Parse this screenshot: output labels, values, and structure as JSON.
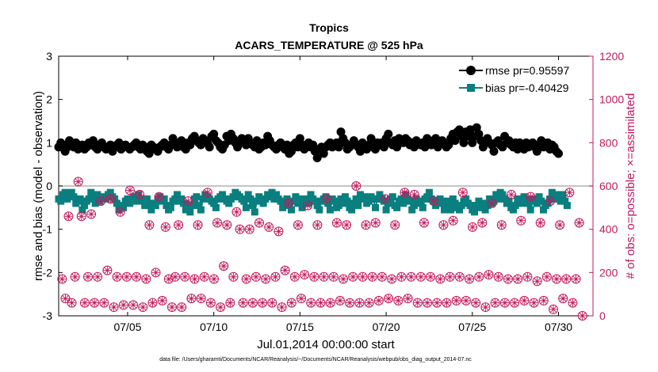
{
  "chart_data": {
    "type": "scatter",
    "title": "Tropics",
    "subtitle": "ACARS_TEMPERATURE @ 525 hPa",
    "xlabel": "Jul.01,2014 00:00:00 start",
    "ylabel": "rmse and bias (model - observation)",
    "y2label": "# of obs: o=possible; ×=assimilated",
    "xlim": [
      1,
      32
    ],
    "ylim": [
      -3,
      3
    ],
    "y2lim": [
      0,
      1200
    ],
    "xticks": [
      5,
      10,
      15,
      20,
      25,
      30
    ],
    "xtick_labels": [
      "07/05",
      "07/10",
      "07/15",
      "07/20",
      "07/25",
      "07/30"
    ],
    "yticks": [
      -3,
      -2,
      -1,
      0,
      1,
      2,
      3
    ],
    "ytick_labels": [
      "-3",
      "-2",
      "-1",
      "0",
      "1",
      "2",
      "3"
    ],
    "y2ticks": [
      0,
      200,
      400,
      600,
      800,
      1000,
      1200
    ],
    "y2tick_labels": [
      "0",
      "200",
      "400",
      "600",
      "800",
      "1000",
      "1200"
    ],
    "zero_line": 0,
    "legend_position": "top-right",
    "series": [
      {
        "name": "rmse pr=0.95597",
        "color": "#000000",
        "marker": "circle",
        "axis": "left",
        "values": [
          0.9,
          1.0,
          0.95,
          0.8,
          0.9,
          1.05,
          0.95,
          0.9,
          1.0,
          0.85,
          0.9,
          0.95,
          0.85,
          0.9,
          1.0,
          0.95,
          1.05,
          0.9,
          0.85,
          0.95,
          1.0,
          0.9,
          0.85,
          0.9,
          0.95,
          0.8,
          0.9,
          0.95,
          1.0,
          0.85,
          0.9,
          0.95,
          0.9,
          0.85,
          0.9,
          0.95,
          1.0,
          0.9,
          0.85,
          0.95,
          0.9,
          0.8,
          0.75,
          0.95,
          0.9,
          0.85,
          0.8,
          0.9,
          0.95,
          1.0,
          0.9,
          0.85,
          0.95,
          1.1,
          1.0,
          0.9,
          0.95,
          1.05,
          0.9,
          0.85,
          1.0,
          0.95,
          1.1,
          1.15,
          1.05,
          1.0,
          0.95,
          1.1,
          1.05,
          1.0,
          0.9,
          1.15,
          1.2,
          1.05,
          1.0,
          0.9,
          0.85,
          0.95,
          1.15,
          1.05,
          1.2,
          1.1,
          1.0,
          0.9,
          1.05,
          1.1,
          1.0,
          0.95,
          1.1,
          1.0,
          0.95,
          0.9,
          1.05,
          0.85,
          0.9,
          1.0,
          0.95,
          1.15,
          1.05,
          0.95,
          0.9,
          0.85,
          0.95,
          1.0,
          0.9,
          0.85,
          0.95,
          0.75,
          0.8,
          0.95,
          1.0,
          0.9,
          1.1,
          0.95,
          0.85,
          0.9,
          1.0,
          0.9,
          0.95,
          0.8,
          0.65,
          0.85,
          0.9,
          0.75,
          0.9,
          0.95,
          1.0,
          0.9,
          0.95,
          1.0,
          0.9,
          1.25,
          1.1,
          1.0,
          0.85,
          0.9,
          0.95,
          1.05,
          0.95,
          0.9,
          0.8,
          1.0,
          0.9,
          0.85,
          0.95,
          1.1,
          0.9,
          0.85,
          1.0,
          0.95,
          1.0,
          0.9,
          1.1,
          1.2,
          1.0,
          0.95,
          1.05,
          0.9,
          1.1,
          1.05,
          1.0,
          1.1,
          1.05,
          0.95,
          1.0,
          0.9,
          1.05,
          1.0,
          0.95,
          1.0,
          0.9,
          1.1,
          1.05,
          0.95,
          1.0,
          1.1,
          0.9,
          1.0,
          1.05,
          1.0,
          0.9,
          0.95,
          1.1,
          1.2,
          1.05,
          1.25,
          1.3,
          1.15,
          1.0,
          1.25,
          1.15,
          1.3,
          1.0,
          1.15,
          1.35,
          1.2,
          1.05,
          0.9,
          1.0,
          1.1,
          1.0,
          0.95,
          0.8,
          1.0,
          1.05,
          0.95,
          0.9,
          1.15,
          1.0,
          1.05,
          0.95,
          0.9,
          1.0,
          0.85,
          1.0,
          0.95,
          0.85,
          1.0,
          0.9,
          0.95,
          1.0,
          0.9,
          0.8,
          0.95,
          1.05,
          0.9,
          0.95,
          1.0,
          0.85,
          0.95,
          0.9,
          0.8,
          0.75
        ],
        "x_start": 1.0,
        "x_step": 0.125
      },
      {
        "name": "bias pr=-0.40429",
        "color": "#0a7f7f",
        "marker": "square",
        "axis": "left",
        "values": [
          -0.3,
          -0.35,
          -0.2,
          -0.15,
          -0.3,
          -0.2,
          -0.15,
          -0.25,
          -0.4,
          -0.35,
          -0.3,
          -0.55,
          -0.45,
          -0.35,
          -0.3,
          -0.15,
          -0.25,
          -0.4,
          -0.2,
          -0.35,
          -0.3,
          -0.25,
          -0.3,
          -0.2,
          -0.15,
          -0.25,
          -0.3,
          -0.4,
          -0.55,
          -0.45,
          -0.5,
          -0.35,
          -0.3,
          -0.4,
          -0.3,
          -0.25,
          -0.35,
          -0.2,
          -0.3,
          -0.35,
          -0.45,
          -0.3,
          -0.4,
          -0.55,
          -0.4,
          -0.45,
          -0.3,
          -0.25,
          -0.35,
          -0.3,
          -0.45,
          -0.55,
          -0.5,
          -0.35,
          -0.3,
          -0.2,
          -0.35,
          -0.3,
          -0.4,
          -0.55,
          -0.45,
          -0.6,
          -0.45,
          -0.3,
          -0.25,
          -0.45,
          -0.55,
          -0.3,
          -0.2,
          -0.25,
          -0.3,
          -0.35,
          -0.4,
          -0.5,
          -0.3,
          -0.25,
          -0.2,
          -0.3,
          -0.35,
          -0.4,
          -0.3,
          -0.25,
          -0.15,
          -0.2,
          -0.25,
          -0.3,
          -0.35,
          -0.5,
          -0.2,
          -0.3,
          -0.45,
          -0.6,
          -0.35,
          -0.25,
          -0.3,
          -0.4,
          -0.3,
          -0.2,
          -0.25,
          -0.15,
          -0.3,
          -0.2,
          -0.3,
          -0.35,
          -0.5,
          -0.45,
          -0.3,
          -0.4,
          -0.55,
          -0.35,
          -0.25,
          -0.4,
          -0.3,
          -0.5,
          -0.35,
          -0.3,
          -0.4,
          -0.2,
          -0.3,
          -0.35,
          -0.45,
          -0.55,
          -0.35,
          -0.3,
          -0.25,
          -0.4,
          -0.55,
          -0.3,
          -0.35,
          -0.5,
          -0.45,
          -0.3,
          -0.4,
          -0.25,
          -0.35,
          -0.5,
          -0.55,
          -0.4,
          -0.3,
          -0.45,
          -0.2,
          -0.3,
          -0.25,
          -0.4,
          -0.35,
          -0.25,
          -0.3,
          -0.5,
          -0.3,
          -0.2,
          -0.3,
          -0.35,
          -0.55,
          -0.4,
          -0.3,
          -0.25,
          -0.45,
          -0.5,
          -0.35,
          -0.3,
          -0.4,
          -0.2,
          -0.3,
          -0.35,
          -0.55,
          -0.45,
          -0.3,
          -0.4,
          -0.35,
          -0.5,
          -0.3,
          -0.25,
          -0.15,
          -0.3,
          -0.35,
          -0.45,
          -0.35,
          -0.3,
          -0.4,
          -0.55,
          -0.35,
          -0.45,
          -0.55,
          -0.3,
          -0.4,
          -0.5,
          -0.55,
          -0.45,
          -0.35,
          -0.3,
          -0.4,
          -0.45,
          -0.55,
          -0.6,
          -0.45,
          -0.35,
          -0.5,
          -0.4,
          -0.55,
          -0.45,
          -0.3,
          -0.4,
          -0.35,
          -0.2,
          -0.3,
          -0.15,
          -0.2,
          -0.3,
          -0.4,
          -0.35,
          -0.5,
          -0.55,
          -0.45,
          -0.3,
          -0.35,
          -0.4,
          -0.25,
          -0.3,
          -0.4,
          -0.55,
          -0.35,
          -0.3,
          -0.4,
          -0.25,
          -0.35,
          -0.55,
          -0.45,
          -0.4,
          -0.3,
          -0.15,
          -0.3,
          -0.2,
          -0.3,
          -0.35,
          -0.2,
          -0.35,
          -0.45
        ],
        "x_start": 1.0,
        "x_step": 0.125
      },
      {
        "name": "possible obs",
        "color": "#c2185b",
        "marker": "circle-open",
        "axis": "right",
        "values": [
          170,
          80,
          460,
          60,
          180,
          620,
          460,
          60,
          180,
          470,
          60,
          180,
          530,
          60,
          210,
          540,
          40,
          180,
          480,
          50,
          180,
          580,
          50,
          180,
          560,
          40,
          170,
          420,
          60,
          200,
          550,
          70,
          410,
          170,
          40,
          180,
          420,
          40,
          180,
          530,
          80,
          170,
          420,
          80,
          180,
          570,
          60,
          170,
          430,
          40,
          230,
          420,
          60,
          180,
          480,
          400,
          60,
          170,
          400,
          60,
          180,
          430,
          60,
          170,
          410,
          60,
          180,
          390,
          40,
          210,
          520,
          60,
          180,
          420,
          80,
          190,
          510,
          60,
          180,
          420,
          60,
          180,
          540,
          60,
          180,
          430,
          70,
          170,
          420,
          60,
          180,
          600,
          60,
          180,
          420,
          60,
          180,
          430,
          70,
          180,
          540,
          80,
          170,
          420,
          70,
          180,
          570,
          80,
          180,
          560,
          60,
          180,
          430,
          60,
          180,
          530,
          60,
          170,
          420,
          60,
          180,
          440,
          70,
          180,
          570,
          70,
          170,
          410,
          60,
          180,
          430,
          40,
          190,
          520,
          60,
          180,
          420,
          60,
          170,
          560,
          60,
          170,
          440,
          70,
          180,
          550,
          60,
          160,
          430,
          70,
          180,
          530,
          30,
          170,
          420,
          80,
          170,
          570,
          60,
          170,
          430,
          0
        ],
        "x_start": 1.2,
        "x_step": 0.1875
      },
      {
        "name": "assimilated obs",
        "color": "#c2185b",
        "marker": "cross",
        "axis": "right",
        "values": [
          170,
          80,
          460,
          60,
          180,
          620,
          460,
          60,
          180,
          470,
          60,
          180,
          530,
          60,
          210,
          540,
          40,
          180,
          480,
          50,
          180,
          580,
          50,
          180,
          560,
          40,
          170,
          420,
          60,
          200,
          550,
          70,
          410,
          170,
          40,
          180,
          420,
          40,
          180,
          530,
          80,
          170,
          420,
          80,
          180,
          570,
          60,
          170,
          430,
          40,
          230,
          420,
          60,
          180,
          480,
          400,
          60,
          170,
          400,
          60,
          180,
          430,
          60,
          170,
          410,
          60,
          180,
          390,
          40,
          210,
          520,
          60,
          180,
          420,
          80,
          190,
          510,
          60,
          180,
          420,
          60,
          180,
          540,
          60,
          180,
          430,
          70,
          170,
          420,
          60,
          180,
          600,
          60,
          180,
          420,
          60,
          180,
          430,
          70,
          180,
          540,
          80,
          170,
          420,
          70,
          180,
          570,
          80,
          180,
          560,
          60,
          180,
          430,
          60,
          180,
          530,
          60,
          170,
          420,
          60,
          180,
          440,
          70,
          180,
          570,
          70,
          170,
          410,
          60,
          180,
          430,
          40,
          190,
          520,
          60,
          180,
          420,
          60,
          170,
          560,
          60,
          170,
          440,
          70,
          180,
          550,
          60,
          160,
          430,
          70,
          180,
          530,
          30,
          170,
          420,
          80,
          170,
          570,
          60,
          170,
          430,
          0
        ],
        "x_start": 1.2,
        "x_step": 0.1875
      }
    ]
  },
  "legend": {
    "rmse_label": "rmse pr=0.95597",
    "bias_label": "bias pr=-0.40429"
  },
  "footnote": "data file: /Users/gharamti/Documents/NCAR/Reanalysis/~/Documents/NCAR/Reanalysis/webpub/obs_diag_output_2014-07.nc",
  "colors": {
    "rmse": "#000000",
    "bias": "#0a7f7f",
    "obs": "#c2185b",
    "zero_line": "#b0b0b0",
    "axis": "#000000"
  }
}
